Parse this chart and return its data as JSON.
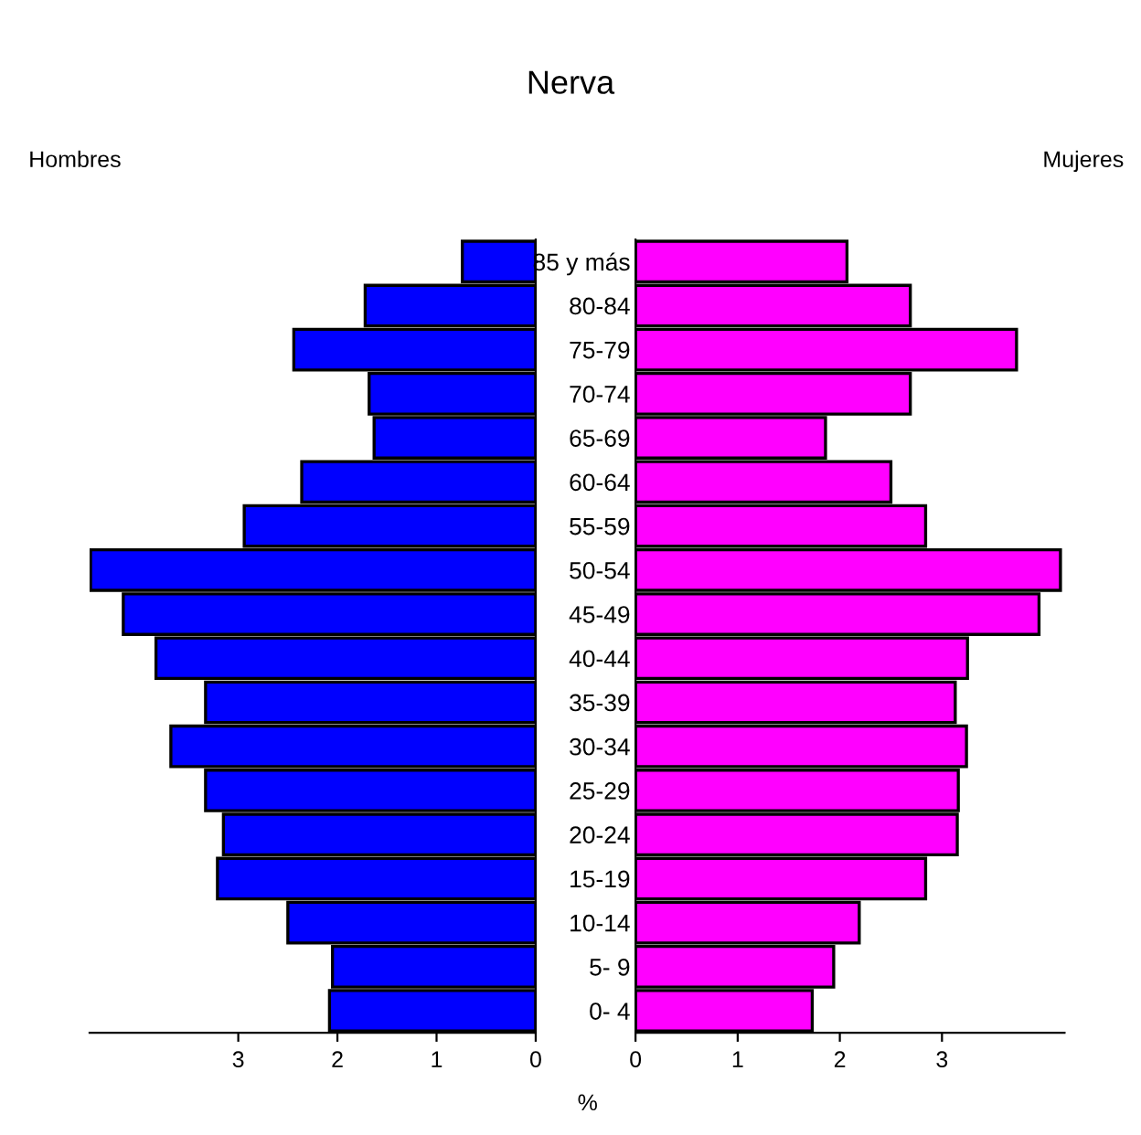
{
  "chart_data": [
    {
      "type": "bar",
      "orientation": "horizontal",
      "title": "Nerva",
      "subtitle": "Hombres",
      "categories": [
        null,
        null,
        null,
        null,
        null,
        null,
        null,
        null,
        null,
        null,
        null,
        null,
        null,
        null,
        null,
        null,
        null,
        null
      ],
      "series": [
        {
          "color": "#0000ff",
          "values": [
            0.74,
            1.72,
            2.44,
            1.68,
            1.63,
            2.36,
            2.94,
            4.49,
            4.16,
            3.83,
            3.33,
            3.68,
            3.33,
            3.15,
            3.21,
            2.5,
            2.05,
            2.08
          ]
        }
      ],
      "xlim": [
        4.5,
        0
      ],
      "xticks": [
        3,
        2,
        1,
        0
      ],
      "tick_labels": "x",
      "grid": false,
      "legend": false
    },
    {
      "type": "bar",
      "orientation": "horizontal",
      "subtitle": "Mujeres",
      "xlabel": "%",
      "categories": [
        "85 y más",
        "80-84",
        "75-79",
        "70-74",
        "65-69",
        "60-64",
        "55-59",
        "50-54",
        "45-49",
        "40-44",
        "35-39",
        "30-34",
        "25-29",
        "20-24",
        "15-19",
        "10-14",
        "5- 9",
        "0- 4"
      ],
      "series": [
        {
          "color": "#ff00ff",
          "values": [
            2.07,
            2.69,
            3.73,
            2.69,
            1.86,
            2.5,
            2.84,
            4.16,
            3.95,
            3.25,
            3.13,
            3.24,
            3.16,
            3.15,
            2.84,
            2.19,
            1.94,
            1.73
          ]
        }
      ],
      "xlim": [
        0,
        4.2
      ],
      "xticks": [
        0,
        1,
        2,
        3
      ],
      "grid": false,
      "legend": false
    }
  ]
}
